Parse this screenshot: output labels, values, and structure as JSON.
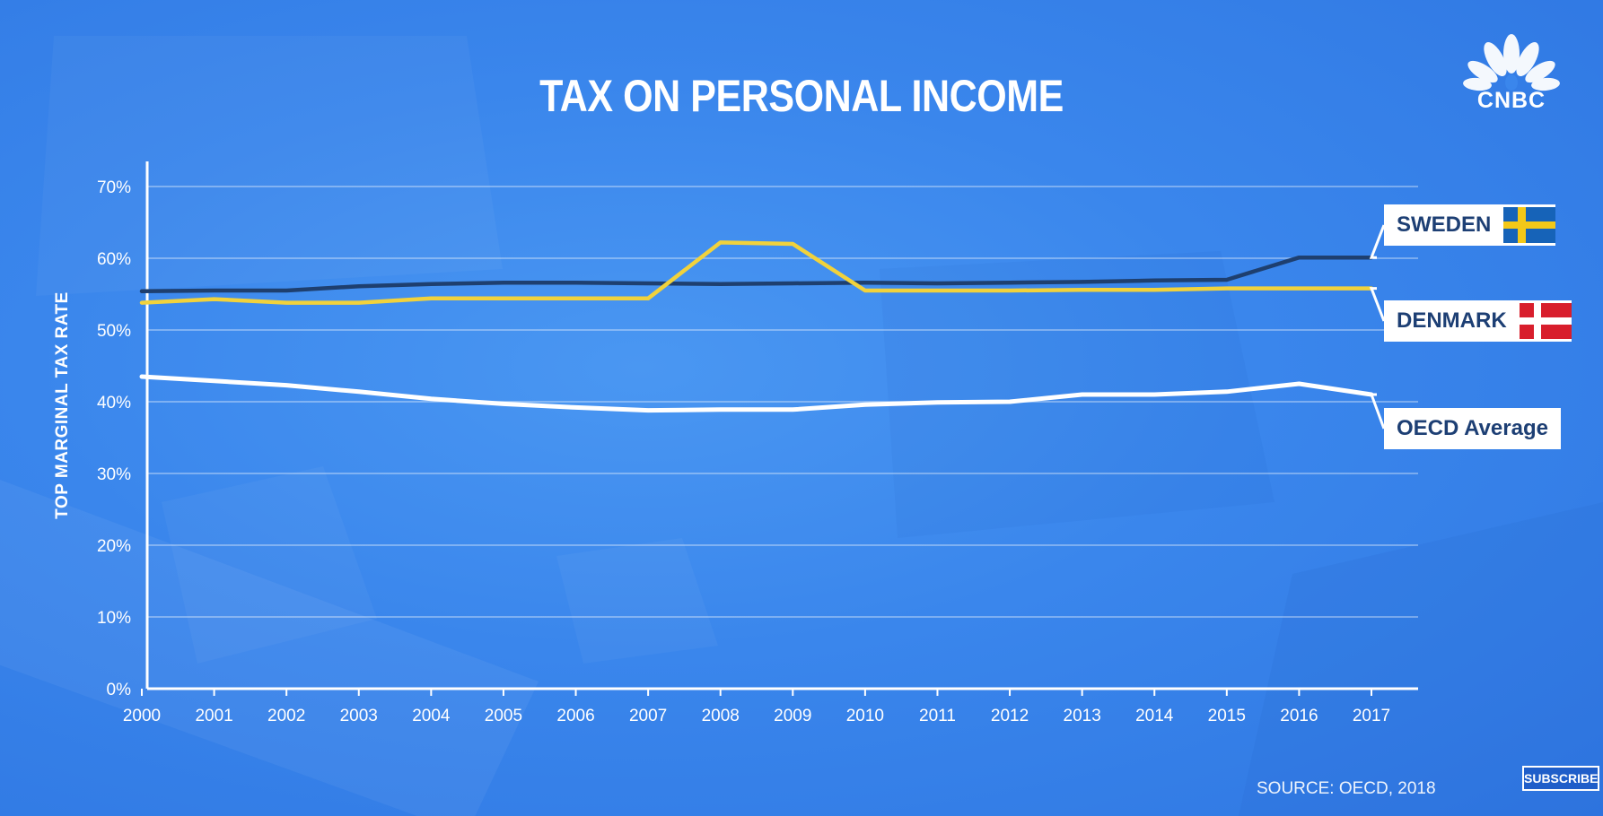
{
  "title": "TAX ON PERSONAL INCOME",
  "brand": {
    "logo_icon": "peacock-icon",
    "name": "CNBC"
  },
  "source": "SOURCE: OECD, 2018",
  "subscribe_label": "SUBSCRIBE",
  "colors": {
    "sweden": "#1e3f6f",
    "denmark": "#f1d23c",
    "oecd": "#ffffff",
    "background": "#3a86ec"
  },
  "chart_data": {
    "type": "line",
    "title": "TAX ON PERSONAL INCOME",
    "xlabel": "",
    "ylabel": "TOP MARGINAL TAX RATE",
    "ylim": [
      0,
      70
    ],
    "yticks": [
      "0%",
      "10%",
      "20%",
      "30%",
      "40%",
      "50%",
      "60%",
      "70%"
    ],
    "grid": true,
    "x": [
      "2000",
      "2001",
      "2002",
      "2003",
      "2004",
      "2005",
      "2006",
      "2007",
      "2008",
      "2009",
      "2010",
      "2011",
      "2012",
      "2013",
      "2014",
      "2015",
      "2016",
      "2017"
    ],
    "series": [
      {
        "name": "SWEDEN",
        "values": [
          55.4,
          55.5,
          55.5,
          56.1,
          56.4,
          56.6,
          56.6,
          56.5,
          56.4,
          56.5,
          56.6,
          56.5,
          56.6,
          56.7,
          56.9,
          57.0,
          60.1,
          60.1
        ]
      },
      {
        "name": "DENMARK",
        "values": [
          53.8,
          54.3,
          53.8,
          53.8,
          54.4,
          54.4,
          54.4,
          54.4,
          62.2,
          62.0,
          55.5,
          55.5,
          55.5,
          55.6,
          55.6,
          55.8,
          55.8,
          55.8
        ]
      },
      {
        "name": "OECD Average",
        "values": [
          43.5,
          42.9,
          42.3,
          41.4,
          40.4,
          39.7,
          39.2,
          38.8,
          38.9,
          38.9,
          39.6,
          39.9,
          40.0,
          41.0,
          41.0,
          41.4,
          42.5,
          41.0
        ]
      }
    ],
    "legend": "right"
  }
}
